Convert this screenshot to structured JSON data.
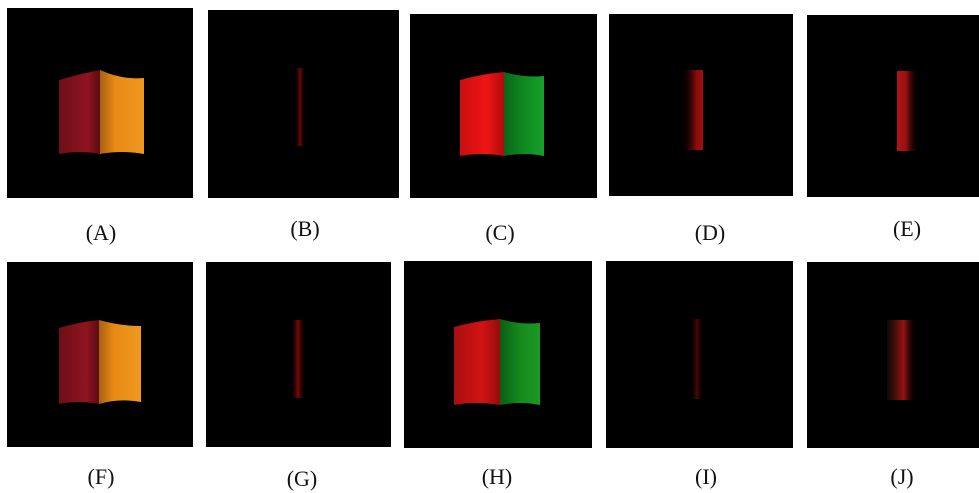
{
  "figure": {
    "panels": [
      {
        "id": "A",
        "label": "(A)",
        "variant": "full",
        "left_color": "#8e1420",
        "right_color": "#e88a14"
      },
      {
        "id": "B",
        "label": "(B)",
        "variant": "dim-strip",
        "strip_color": "#6a0a0a"
      },
      {
        "id": "C",
        "label": "(C)",
        "variant": "full",
        "left_color": "#f01414",
        "right_color": "#0f8a22"
      },
      {
        "id": "D",
        "label": "(D)",
        "variant": "dim-strip",
        "strip_color": "#8a0c0c"
      },
      {
        "id": "E",
        "label": "(E)",
        "variant": "dim-strip",
        "strip_color": "#9a1212"
      },
      {
        "id": "F",
        "label": "(F)",
        "variant": "full",
        "left_color": "#8e1420",
        "right_color": "#e88a14"
      },
      {
        "id": "G",
        "label": "(G)",
        "variant": "dim-strip",
        "strip_color": "#7a0a0a"
      },
      {
        "id": "H",
        "label": "(H)",
        "variant": "full",
        "left_color": "#d21414",
        "right_color": "#168a1c"
      },
      {
        "id": "I",
        "label": "(I)",
        "variant": "dim-strip",
        "strip_color": "#4a0808"
      },
      {
        "id": "J",
        "label": "(J)",
        "variant": "dim-strip",
        "strip_color": "#9a1212"
      }
    ]
  }
}
